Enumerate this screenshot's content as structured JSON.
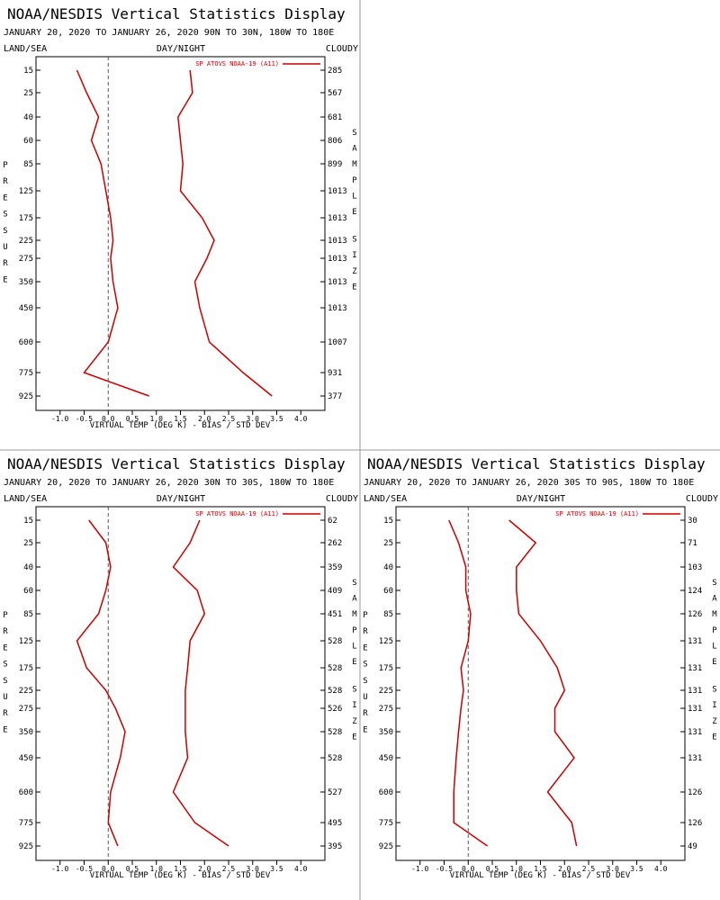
{
  "header": {
    "title": "NOAA/NESDIS Vertical Statistics Display",
    "date_range": "JANUARY 20, 2020 TO JANUARY 26, 2020",
    "land_sea": "LAND/SEA",
    "day_night": "DAY/NIGHT",
    "cloudy": "CLOUDY"
  },
  "axis": {
    "xlabel": "VIRTUAL TEMP (DEG K) - BIAS / STD DEV",
    "ylabel": "PRESSURE",
    "right_label": "SAMPLE SIZE",
    "x_ticks": [
      "-1.0",
      "-0.5",
      "0.0",
      "0.5",
      "1.0",
      "1.5",
      "2.0",
      "2.5",
      "3.0",
      "3.5",
      "4.0"
    ],
    "pressure_levels": [
      "15",
      "25",
      "40",
      "60",
      "85",
      "125",
      "175",
      "225",
      "275",
      "350",
      "450",
      "600",
      "775",
      "925"
    ]
  },
  "colors": {
    "series": "#cc0000",
    "zero_line": "#555555"
  },
  "chart_data": [
    {
      "type": "line",
      "region": "90N TO 30N, 180W TO 180E",
      "legend": "SP ATOVS NOAA-19 (A11)",
      "xlim": [
        -1.5,
        4.5
      ],
      "series": [
        {
          "name": "bias",
          "x": [
            -0.65,
            -0.45,
            -0.2,
            -0.35,
            -0.15,
            -0.05,
            0.05,
            0.1,
            0.05,
            0.1,
            0.2,
            0.0,
            -0.5,
            0.85
          ]
        },
        {
          "name": "std dev",
          "x": [
            1.7,
            1.75,
            1.45,
            1.5,
            1.55,
            1.5,
            1.95,
            2.2,
            2.05,
            1.8,
            1.9,
            2.1,
            2.8,
            3.4
          ]
        }
      ],
      "sample_size": [
        "285",
        "567",
        "681",
        "806",
        "899",
        "1013",
        "1013",
        "1013",
        "1013",
        "1013",
        "1013",
        "1007",
        "931",
        "377"
      ]
    },
    {
      "type": "line",
      "region": "30N TO 30S, 180W TO 180E",
      "legend": "SP ATOVS NOAA-19 (A11)",
      "xlim": [
        -1.5,
        4.5
      ],
      "series": [
        {
          "name": "bias",
          "x": [
            -0.4,
            -0.05,
            0.05,
            -0.05,
            -0.2,
            -0.65,
            -0.45,
            -0.05,
            0.15,
            0.35,
            0.25,
            0.05,
            0.0,
            0.2
          ]
        },
        {
          "name": "std dev",
          "x": [
            1.9,
            1.7,
            1.35,
            1.85,
            2.0,
            1.7,
            1.65,
            1.6,
            1.6,
            1.6,
            1.65,
            1.35,
            1.8,
            2.5
          ]
        }
      ],
      "sample_size": [
        "62",
        "262",
        "359",
        "409",
        "451",
        "528",
        "528",
        "528",
        "526",
        "528",
        "528",
        "527",
        "495",
        "395"
      ]
    },
    {
      "type": "line",
      "region": "30S TO 90S, 180W TO 180E",
      "legend": "SP ATOVS NOAA-19 (A11)",
      "xlim": [
        -1.5,
        4.5
      ],
      "series": [
        {
          "name": "bias",
          "x": [
            -0.4,
            -0.2,
            -0.05,
            -0.05,
            0.05,
            0.0,
            -0.15,
            -0.1,
            -0.15,
            -0.2,
            -0.25,
            -0.3,
            -0.3,
            0.4
          ]
        },
        {
          "name": "std dev",
          "x": [
            0.85,
            1.4,
            1.0,
            1.0,
            1.05,
            1.5,
            1.85,
            2.0,
            1.8,
            1.8,
            2.2,
            1.65,
            2.15,
            2.25
          ]
        }
      ],
      "sample_size": [
        "30",
        "71",
        "103",
        "124",
        "126",
        "131",
        "131",
        "131",
        "131",
        "131",
        "131",
        "126",
        "126",
        "49"
      ]
    }
  ]
}
